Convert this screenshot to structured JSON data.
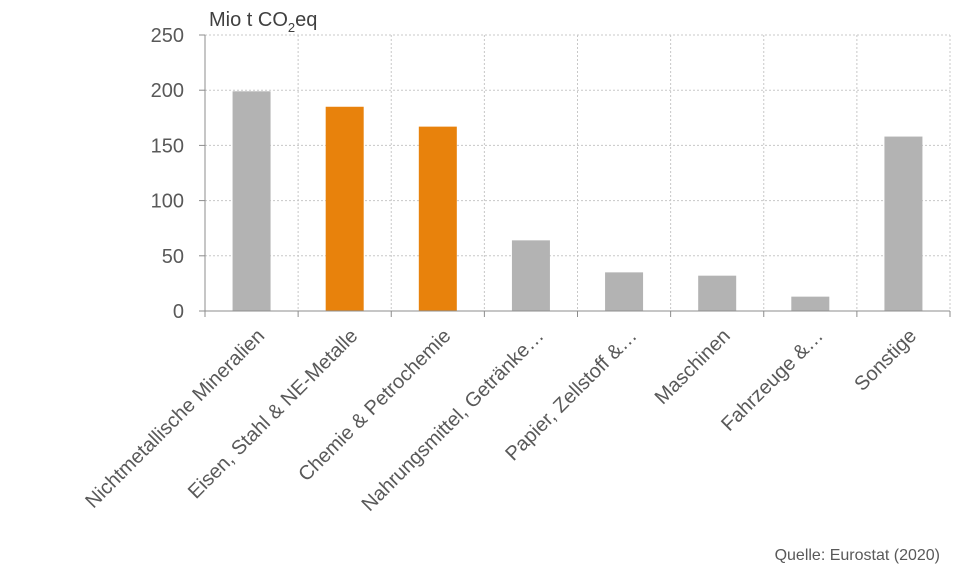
{
  "chart_data": {
    "type": "bar",
    "ylabel_main": "Mio t CO",
    "ylabel_sub": "2",
    "ylabel_tail": "eq",
    "source": "Quelle: Eurostat (2020)",
    "ylim": [
      0,
      250
    ],
    "yticks": [
      0,
      50,
      100,
      150,
      200,
      250
    ],
    "grid": true,
    "categories": [
      "Nichtmetallische Mineralien",
      "Eisen, Stahl & NE-Metalle",
      "Chemie & Petrochemie",
      "Nahrungsmittel, Getränke…",
      "Papier, Zellstoff &…",
      "Maschinen",
      "Fahrzeuge &…",
      "Sonstige"
    ],
    "values": [
      199,
      185,
      167,
      64,
      35,
      32,
      13,
      158
    ],
    "highlighted": [
      false,
      true,
      true,
      false,
      false,
      false,
      false,
      false
    ],
    "colors": {
      "default": "#b3b3b3",
      "highlight": "#e8820c"
    }
  }
}
